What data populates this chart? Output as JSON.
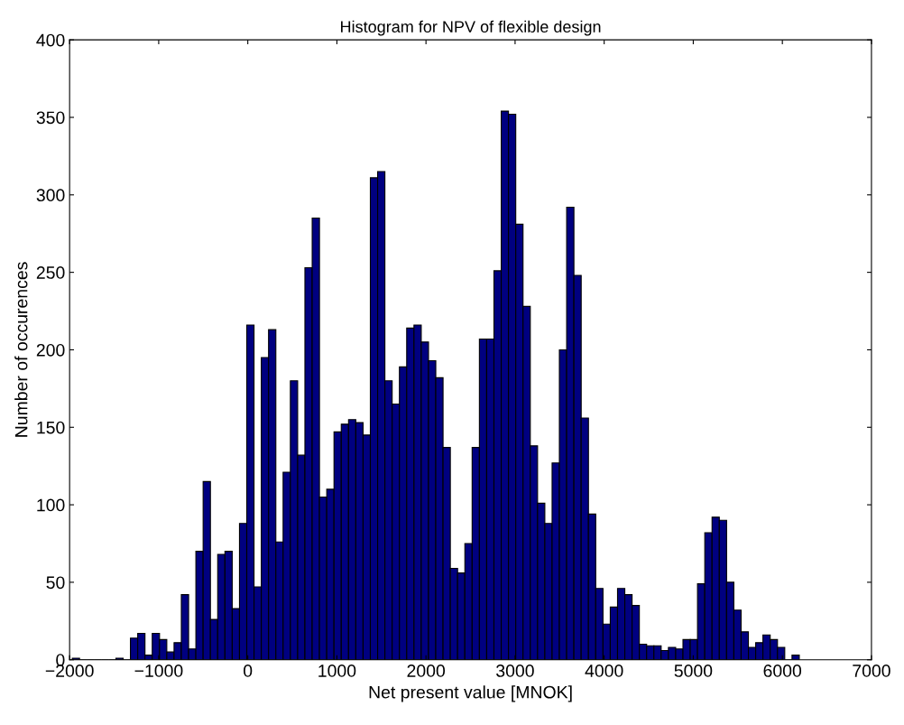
{
  "chart_data": {
    "type": "histogram",
    "title": "Histogram for NPV of flexible design",
    "xlabel": "Net present value [MNOK]",
    "ylabel": "Number of occurences",
    "bins": [
      -1970.0,
      -1888.4,
      -1806.8,
      -1725.2,
      -1643.6,
      -1562.0,
      -1480.4,
      -1398.8,
      -1317.2,
      -1235.6,
      -1154.0,
      -1072.4,
      -990.8,
      -909.2,
      -827.6,
      -746.0,
      -664.4,
      -582.8,
      -501.2,
      -419.6,
      -338.0,
      -256.4,
      -174.8,
      -93.2,
      -11.6,
      70.0,
      151.6,
      233.2,
      314.8,
      396.4,
      478.0,
      559.6,
      641.2,
      722.8,
      804.4,
      886.0,
      967.6,
      1049.2,
      1130.8,
      1212.4,
      1294.0,
      1375.6,
      1457.2,
      1538.8,
      1620.4,
      1702.0,
      1783.6,
      1865.2,
      1946.8,
      2028.4,
      2110.0,
      2191.6,
      2273.2,
      2354.8,
      2436.4,
      2518.0,
      2599.6,
      2681.2,
      2762.8,
      2844.4,
      2926.0,
      3007.6,
      3089.2,
      3170.8,
      3252.4,
      3334.0,
      3415.6,
      3497.2,
      3578.8,
      3660.4,
      3742.0,
      3823.6,
      3905.2,
      3986.8,
      4068.4,
      4150.0,
      4231.6,
      4313.2,
      4394.8,
      4476.4,
      4558.0,
      4639.6,
      4721.2,
      4802.8,
      4884.4,
      4966.0,
      5047.6,
      5129.2,
      5210.8,
      5292.4,
      5374.0,
      5455.6,
      5537.2,
      5618.8,
      5700.4,
      5782.0,
      5863.6,
      5945.2,
      6026.8,
      6108.4,
      6190.0
    ],
    "values": [
      1,
      0,
      0,
      0,
      0,
      0,
      1,
      0,
      14,
      17,
      3,
      17,
      13,
      5,
      11,
      42,
      7,
      70,
      115,
      26,
      68,
      70,
      33,
      88,
      216,
      47,
      195,
      213,
      76,
      121,
      180,
      132,
      253,
      285,
      105,
      110,
      147,
      152,
      155,
      153,
      145,
      311,
      315,
      180,
      165,
      189,
      214,
      216,
      205,
      193,
      182,
      137,
      59,
      56,
      75,
      137,
      207,
      207,
      251,
      354,
      352,
      281,
      228,
      138,
      101,
      88,
      127,
      200,
      292,
      248,
      156,
      94,
      46,
      23,
      34,
      46,
      42,
      35,
      10,
      9,
      9,
      6,
      8,
      7,
      13,
      13,
      49,
      82,
      92,
      90,
      50,
      32,
      18,
      8,
      11,
      16,
      13,
      8,
      0,
      3
    ],
    "color": "#000080",
    "xlim": [
      -2000,
      7000
    ],
    "xticks": [
      {
        "value": -2000,
        "label": "−2000"
      },
      {
        "value": -1000,
        "label": "−1000"
      },
      0,
      1000,
      2000,
      3000,
      4000,
      5000,
      6000,
      7000
    ],
    "ylim": [
      0,
      400
    ],
    "yticks": [
      0,
      50,
      100,
      150,
      200,
      250,
      300,
      350,
      400
    ],
    "grid": false
  }
}
